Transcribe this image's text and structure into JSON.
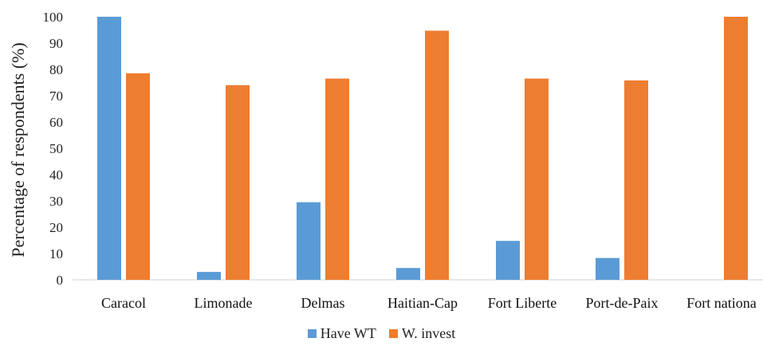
{
  "chart_data": {
    "type": "bar",
    "title": "",
    "xlabel": "",
    "ylabel": "Percentage of respondents (%)",
    "ylim": [
      0,
      100
    ],
    "yticks": [
      0,
      10,
      20,
      30,
      40,
      50,
      60,
      70,
      80,
      90,
      100
    ],
    "categories": [
      "Caracol",
      "Limonade",
      "Delmas",
      "Haitian-Cap",
      "Fort Liberte",
      "Port-de-Paix",
      "Fort nationa"
    ],
    "series": [
      {
        "name": "Have WT",
        "color": "#5B9BD5",
        "values": [
          100,
          3,
          29.5,
          4.5,
          14.8,
          8.3,
          0
        ]
      },
      {
        "name": "W. invest",
        "color": "#ED7D31",
        "values": [
          78.5,
          74,
          76.5,
          94.7,
          76.5,
          75.8,
          100
        ]
      }
    ],
    "grid": false,
    "legend_position": "bottom"
  }
}
